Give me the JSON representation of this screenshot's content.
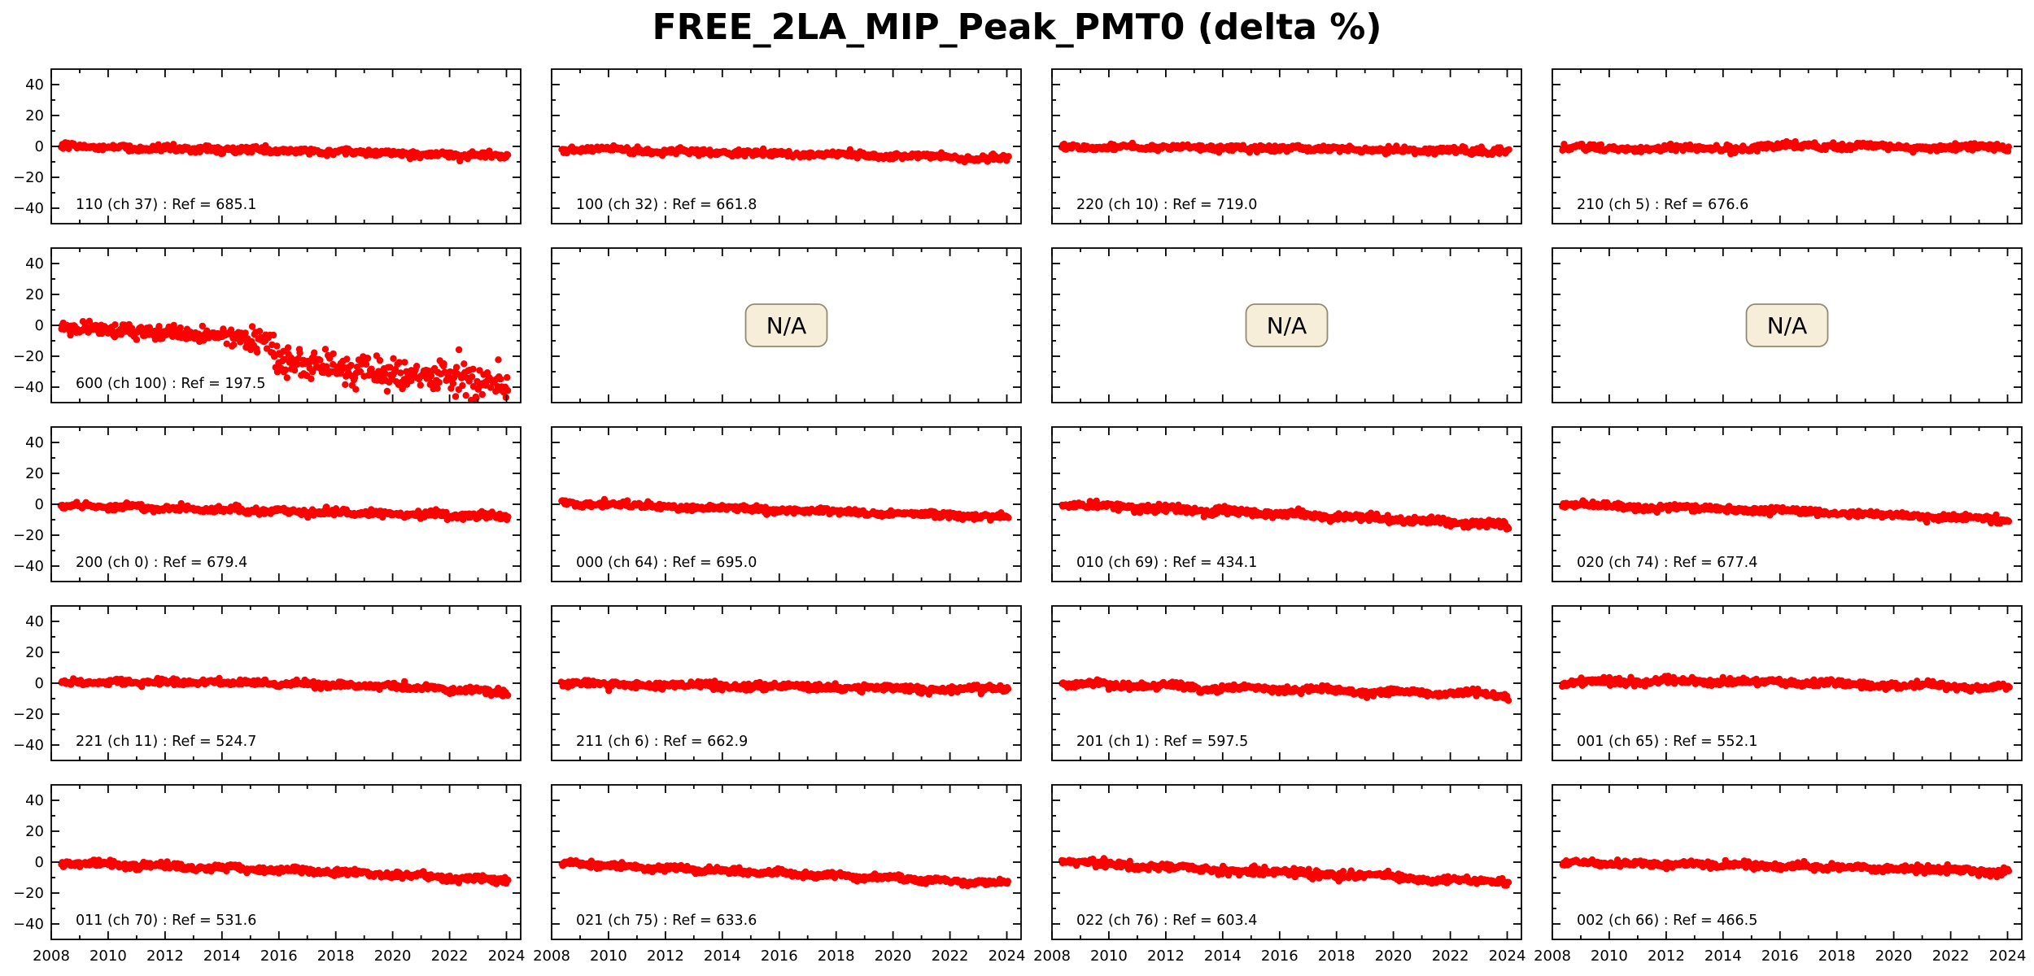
{
  "chart_data": {
    "type": "scatter",
    "title": "FREE_2LA_MIP_Peak_PMT0 (delta %)",
    "x_range": [
      2008,
      2024.5
    ],
    "y_range": [
      -50,
      50
    ],
    "x_ticks": [
      2008,
      2010,
      2012,
      2014,
      2016,
      2018,
      2020,
      2022,
      2024
    ],
    "x_tick_labels": [
      "2008",
      "2010",
      "2012",
      "2014",
      "2016",
      "2018",
      "2020",
      "2022",
      "2024"
    ],
    "x_minor_ticks": [
      2009,
      2011,
      2013,
      2015,
      2017,
      2019,
      2021,
      2023
    ],
    "y_ticks": [
      -40,
      -20,
      0,
      20,
      40
    ],
    "y_tick_labels": [
      "−40",
      "−20",
      "0",
      "20",
      "40"
    ],
    "y_minor_ticks": [
      -30,
      -10,
      10,
      30
    ],
    "grid": false,
    "legend": null,
    "marker": {
      "shape": "circle",
      "color": "#ff0000",
      "radius": 4.2
    },
    "axis_color": "#000000",
    "na_badge": {
      "text": "N/A",
      "bg": "#f6eed8",
      "border": "#8f8b75"
    },
    "tick_style": {
      "direction": "in",
      "major_len": 10,
      "minor_len": 5
    },
    "panels": [
      {
        "id": "110",
        "na": false,
        "label": "110 (ch 37) : Ref = 685.1",
        "seed": 101,
        "n_points": 430,
        "x_start": 2008.35,
        "x_end": 2024.05,
        "wiggle": 0.6,
        "trend": [
          [
            2008.35,
            0.3
          ],
          [
            2012,
            -1.3
          ],
          [
            2016,
            -2.6
          ],
          [
            2020,
            -4.3
          ],
          [
            2024.05,
            -6.3
          ]
        ],
        "noise": [
          [
            2008.35,
            1.0
          ],
          [
            2024.05,
            1.1
          ]
        ]
      },
      {
        "id": "100",
        "na": false,
        "label": "100 (ch 32) : Ref = 661.8",
        "seed": 102,
        "n_points": 430,
        "x_start": 2008.35,
        "x_end": 2024.05,
        "wiggle": 0.6,
        "trend": [
          [
            2008.35,
            -1.6
          ],
          [
            2012,
            -3.2
          ],
          [
            2016,
            -4.6
          ],
          [
            2020,
            -6.2
          ],
          [
            2024.05,
            -8.2
          ]
        ],
        "noise": [
          [
            2008.35,
            1.0
          ],
          [
            2024.05,
            1.0
          ]
        ]
      },
      {
        "id": "220",
        "na": false,
        "label": "220 (ch 10) : Ref = 719.0",
        "seed": 103,
        "n_points": 430,
        "x_start": 2008.35,
        "x_end": 2024.05,
        "wiggle": 0.5,
        "trend": [
          [
            2008.35,
            -0.6
          ],
          [
            2012,
            -0.8
          ],
          [
            2016,
            -1.2
          ],
          [
            2020,
            -2.2
          ],
          [
            2024.05,
            -3.2
          ]
        ],
        "noise": [
          [
            2008.35,
            0.9
          ],
          [
            2024.05,
            1.0
          ]
        ]
      },
      {
        "id": "210",
        "na": false,
        "label": "210 (ch 5) : Ref = 676.6",
        "seed": 104,
        "n_points": 430,
        "x_start": 2008.35,
        "x_end": 2024.05,
        "wiggle": 0.7,
        "trend": [
          [
            2008.35,
            -1.2
          ],
          [
            2012,
            -1.2
          ],
          [
            2015.2,
            -1.0
          ],
          [
            2016.2,
            0.4
          ],
          [
            2018,
            0.3
          ],
          [
            2020,
            -0.6
          ],
          [
            2022,
            -0.2
          ],
          [
            2024.05,
            -0.8
          ]
        ],
        "noise": [
          [
            2008.35,
            1.0
          ],
          [
            2024.05,
            1.0
          ]
        ]
      },
      {
        "id": "600",
        "na": false,
        "label": "600 (ch 100) : Ref = 197.5",
        "seed": 105,
        "n_points": 470,
        "x_start": 2008.35,
        "x_end": 2024.05,
        "wiggle": 0.5,
        "trend": [
          [
            2008.35,
            -1
          ],
          [
            2010,
            -3
          ],
          [
            2012,
            -4.5
          ],
          [
            2014,
            -7.5
          ],
          [
            2015.6,
            -9.5
          ],
          [
            2016.0,
            -24
          ],
          [
            2018,
            -27
          ],
          [
            2020,
            -30.5
          ],
          [
            2022,
            -34
          ],
          [
            2024.05,
            -38
          ]
        ],
        "noise": [
          [
            2008.35,
            2.2
          ],
          [
            2015.6,
            2.8
          ],
          [
            2016.0,
            5.0
          ],
          [
            2024.05,
            6.5
          ]
        ]
      },
      {
        "id": "na1",
        "na": true,
        "label": null
      },
      {
        "id": "na2",
        "na": true,
        "label": null
      },
      {
        "id": "na3",
        "na": true,
        "label": null
      },
      {
        "id": "200",
        "na": false,
        "label": "200 (ch 0) : Ref = 679.4",
        "seed": 106,
        "n_points": 430,
        "x_start": 2008.35,
        "x_end": 2024.05,
        "wiggle": 0.7,
        "trend": [
          [
            2008.35,
            -0.3
          ],
          [
            2012,
            -2.6
          ],
          [
            2016,
            -4.6
          ],
          [
            2020,
            -6.2
          ],
          [
            2024.05,
            -8.0
          ]
        ],
        "noise": [
          [
            2008.35,
            1.0
          ],
          [
            2024.05,
            1.1
          ]
        ]
      },
      {
        "id": "000",
        "na": false,
        "label": "000 (ch 64) : Ref = 695.0",
        "seed": 107,
        "n_points": 430,
        "x_start": 2008.35,
        "x_end": 2024.05,
        "wiggle": 0.6,
        "trend": [
          [
            2008.35,
            0.8
          ],
          [
            2010,
            -0.3
          ],
          [
            2014,
            -2.6
          ],
          [
            2018,
            -5.0
          ],
          [
            2022,
            -7.0
          ],
          [
            2024.05,
            -8.0
          ]
        ],
        "noise": [
          [
            2008.35,
            1.0
          ],
          [
            2024.05,
            1.0
          ]
        ]
      },
      {
        "id": "010",
        "na": false,
        "label": "010 (ch 69) : Ref = 434.1",
        "seed": 108,
        "n_points": 430,
        "x_start": 2008.35,
        "x_end": 2024.05,
        "wiggle": 0.7,
        "trend": [
          [
            2008.35,
            0.3
          ],
          [
            2012,
            -3.2
          ],
          [
            2016,
            -6.2
          ],
          [
            2020,
            -9.8
          ],
          [
            2024.05,
            -13.8
          ]
        ],
        "noise": [
          [
            2008.35,
            1.2
          ],
          [
            2024.05,
            1.2
          ]
        ]
      },
      {
        "id": "020",
        "na": false,
        "label": "020 (ch 74) : Ref = 677.4",
        "seed": 109,
        "n_points": 430,
        "x_start": 2008.35,
        "x_end": 2024.05,
        "wiggle": 0.6,
        "trend": [
          [
            2008.35,
            -0.2
          ],
          [
            2012,
            -2.2
          ],
          [
            2016,
            -4.2
          ],
          [
            2020,
            -7.0
          ],
          [
            2024.05,
            -10.2
          ]
        ],
        "noise": [
          [
            2008.35,
            1.0
          ],
          [
            2024.05,
            1.0
          ]
        ]
      },
      {
        "id": "221",
        "na": false,
        "label": "221 (ch 11) : Ref = 524.7",
        "seed": 110,
        "n_points": 430,
        "x_start": 2008.35,
        "x_end": 2024.05,
        "wiggle": 0.6,
        "trend": [
          [
            2008.35,
            0.4
          ],
          [
            2011,
            0.9
          ],
          [
            2014,
            0.4
          ],
          [
            2017,
            -0.6
          ],
          [
            2020,
            -2.2
          ],
          [
            2024.05,
            -6.0
          ]
        ],
        "noise": [
          [
            2008.35,
            1.0
          ],
          [
            2024.05,
            1.0
          ]
        ]
      },
      {
        "id": "211",
        "na": false,
        "label": "211 (ch 6) : Ref = 662.9",
        "seed": 111,
        "n_points": 430,
        "x_start": 2008.35,
        "x_end": 2024.05,
        "wiggle": 0.7,
        "trend": [
          [
            2008.35,
            -0.2
          ],
          [
            2012,
            -1.2
          ],
          [
            2016,
            -2.2
          ],
          [
            2019,
            -2.6
          ],
          [
            2021,
            -4.4
          ],
          [
            2023,
            -3.6
          ],
          [
            2024.05,
            -4.2
          ]
        ],
        "noise": [
          [
            2008.35,
            1.1
          ],
          [
            2024.05,
            1.1
          ]
        ]
      },
      {
        "id": "201",
        "na": false,
        "label": "201 (ch 1) : Ref = 597.5",
        "seed": 112,
        "n_points": 430,
        "x_start": 2008.35,
        "x_end": 2024.05,
        "wiggle": 1.0,
        "trend": [
          [
            2008.35,
            -0.2
          ],
          [
            2012,
            -2.2
          ],
          [
            2016,
            -3.8
          ],
          [
            2020,
            -6.0
          ],
          [
            2024.05,
            -8.0
          ]
        ],
        "noise": [
          [
            2008.35,
            1.1
          ],
          [
            2024.05,
            1.2
          ]
        ]
      },
      {
        "id": "001",
        "na": false,
        "label": "001 (ch 65) : Ref = 552.1",
        "seed": 113,
        "n_points": 430,
        "x_start": 2008.35,
        "x_end": 2024.05,
        "wiggle": 0.7,
        "trend": [
          [
            2008.35,
            0.2
          ],
          [
            2009.2,
            1.0
          ],
          [
            2013,
            1.4
          ],
          [
            2016,
            0.6
          ],
          [
            2020,
            -1.2
          ],
          [
            2024.05,
            -3.0
          ]
        ],
        "noise": [
          [
            2008.35,
            1.2
          ],
          [
            2024.05,
            1.0
          ]
        ]
      },
      {
        "id": "011",
        "na": false,
        "label": "011 (ch 70) : Ref = 531.6",
        "seed": 114,
        "n_points": 430,
        "x_start": 2008.35,
        "x_end": 2024.05,
        "wiggle": 0.7,
        "trend": [
          [
            2008.35,
            -0.2
          ],
          [
            2010,
            -1.2
          ],
          [
            2014,
            -4.2
          ],
          [
            2016,
            -4.8
          ],
          [
            2020,
            -8.2
          ],
          [
            2024.05,
            -12.2
          ]
        ],
        "noise": [
          [
            2008.35,
            1.1
          ],
          [
            2024.05,
            1.1
          ]
        ]
      },
      {
        "id": "021",
        "na": false,
        "label": "021 (ch 75) : Ref = 633.6",
        "seed": 115,
        "n_points": 430,
        "x_start": 2008.35,
        "x_end": 2024.05,
        "wiggle": 0.6,
        "trend": [
          [
            2008.35,
            -0.3
          ],
          [
            2012,
            -4.0
          ],
          [
            2016,
            -7.0
          ],
          [
            2020,
            -10.5
          ],
          [
            2024.05,
            -14.0
          ]
        ],
        "noise": [
          [
            2008.35,
            1.0
          ],
          [
            2024.05,
            1.0
          ]
        ]
      },
      {
        "id": "022",
        "na": false,
        "label": "022 (ch 76) : Ref = 603.4",
        "seed": 116,
        "n_points": 430,
        "x_start": 2008.35,
        "x_end": 2024.05,
        "wiggle": 0.7,
        "trend": [
          [
            2008.35,
            0.3
          ],
          [
            2012,
            -3.2
          ],
          [
            2016,
            -6.6
          ],
          [
            2020,
            -9.2
          ],
          [
            2022,
            -11.8
          ],
          [
            2024.05,
            -13.2
          ]
        ],
        "noise": [
          [
            2008.35,
            1.1
          ],
          [
            2024.05,
            1.1
          ]
        ]
      },
      {
        "id": "002",
        "na": false,
        "label": "002 (ch 66) : Ref = 466.5",
        "seed": 117,
        "n_points": 430,
        "x_start": 2008.35,
        "x_end": 2024.05,
        "wiggle": 0.6,
        "trend": [
          [
            2008.35,
            -0.2
          ],
          [
            2012,
            -1.2
          ],
          [
            2016,
            -2.6
          ],
          [
            2020,
            -4.2
          ],
          [
            2024.05,
            -6.2
          ]
        ],
        "noise": [
          [
            2008.35,
            1.0
          ],
          [
            2024.05,
            1.0
          ]
        ]
      }
    ]
  }
}
